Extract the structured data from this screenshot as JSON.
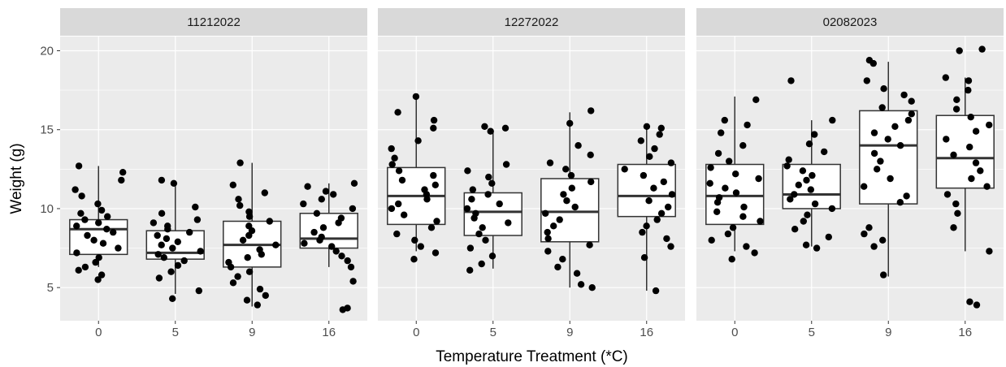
{
  "chart_data": {
    "type": "boxplot",
    "xlabel": "Temperature Treatment (*C)",
    "ylabel": "Weight (g)",
    "ylim": [
      2.9,
      20.9
    ],
    "yticks": [
      5,
      10,
      15,
      20
    ],
    "categories": [
      "0",
      "5",
      "9",
      "16"
    ],
    "panels": [
      {
        "label": "11212022",
        "boxes": [
          {
            "category": "0",
            "lower": 6.3,
            "q1": 7.1,
            "median": 8.7,
            "q3": 9.3,
            "upper": 12.7
          },
          {
            "category": "5",
            "lower": 4.6,
            "q1": 6.8,
            "median": 7.2,
            "q3": 8.6,
            "upper": 11.7
          },
          {
            "category": "9",
            "lower": 3.8,
            "q1": 6.3,
            "median": 7.7,
            "q3": 9.2,
            "upper": 12.9
          },
          {
            "category": "16",
            "lower": 6.3,
            "q1": 7.5,
            "median": 8.1,
            "q3": 9.7,
            "upper": 11.6
          }
        ],
        "points": [
          {
            "category": "0",
            "values": [
              5.5,
              5.8,
              6.1,
              6.3,
              6.6,
              6.9,
              7.2,
              7.5,
              7.8,
              8.0,
              8.3,
              8.5,
              8.7,
              8.9,
              9.1,
              9.3,
              9.5,
              9.7,
              9.9,
              10.3,
              10.8,
              11.2,
              11.8,
              12.3,
              12.7
            ]
          },
          {
            "category": "5",
            "values": [
              4.3,
              4.8,
              5.6,
              6.0,
              6.4,
              6.7,
              6.9,
              7.1,
              7.3,
              7.5,
              7.7,
              7.9,
              8.1,
              8.3,
              8.5,
              8.7,
              8.9,
              9.1,
              9.3,
              9.7,
              10.1,
              11.6,
              11.8
            ]
          },
          {
            "category": "9",
            "values": [
              3.9,
              4.2,
              4.5,
              4.9,
              5.3,
              5.7,
              6.0,
              6.3,
              6.6,
              6.9,
              7.1,
              7.4,
              7.7,
              8.0,
              8.3,
              8.6,
              8.9,
              9.2,
              9.5,
              9.8,
              10.2,
              10.6,
              11.0,
              11.5,
              12.9
            ]
          },
          {
            "category": "16",
            "values": [
              3.6,
              3.7,
              5.4,
              6.3,
              6.7,
              7.0,
              7.3,
              7.6,
              7.8,
              8.0,
              8.2,
              8.5,
              8.8,
              9.1,
              9.4,
              9.7,
              10.0,
              10.3,
              10.6,
              10.9,
              11.1,
              11.4,
              11.6
            ]
          }
        ]
      },
      {
        "label": "12272022",
        "boxes": [
          {
            "category": "0",
            "lower": 7.3,
            "q1": 9.0,
            "median": 10.8,
            "q3": 12.6,
            "upper": 17.0
          },
          {
            "category": "5",
            "lower": 6.2,
            "q1": 8.3,
            "median": 9.8,
            "q3": 11.0,
            "upper": 15.0
          },
          {
            "category": "9",
            "lower": 5.0,
            "q1": 7.9,
            "median": 9.8,
            "q3": 11.9,
            "upper": 16.1
          },
          {
            "category": "16",
            "lower": 4.8,
            "q1": 9.5,
            "median": 10.8,
            "q3": 12.8,
            "upper": 15.3
          }
        ],
        "points": [
          {
            "category": "0",
            "values": [
              6.8,
              7.2,
              7.6,
              8.0,
              8.4,
              8.8,
              9.2,
              9.6,
              10.0,
              10.3,
              10.6,
              10.9,
              11.2,
              11.5,
              11.8,
              12.1,
              12.4,
              12.8,
              13.2,
              13.8,
              14.3,
              15.1,
              15.6,
              16.1,
              17.1
            ]
          },
          {
            "category": "5",
            "values": [
              6.1,
              6.5,
              7.0,
              7.5,
              8.0,
              8.4,
              8.8,
              9.1,
              9.4,
              9.7,
              10.0,
              10.3,
              10.6,
              10.9,
              11.2,
              11.6,
              12.0,
              12.4,
              12.8,
              14.9,
              15.1,
              15.2
            ]
          },
          {
            "category": "9",
            "values": [
              5.0,
              5.2,
              5.9,
              6.3,
              6.8,
              7.3,
              7.7,
              8.1,
              8.5,
              8.9,
              9.3,
              9.7,
              10.1,
              10.5,
              10.9,
              11.3,
              11.7,
              12.1,
              12.5,
              12.9,
              13.4,
              14.0,
              15.4,
              16.2
            ]
          },
          {
            "category": "16",
            "values": [
              4.8,
              6.9,
              7.6,
              8.1,
              8.5,
              8.9,
              9.3,
              9.7,
              10.1,
              10.5,
              10.9,
              11.3,
              11.7,
              12.1,
              12.5,
              12.9,
              13.3,
              13.8,
              14.3,
              14.7,
              15.1,
              15.2
            ]
          }
        ]
      },
      {
        "label": "02082023",
        "boxes": [
          {
            "category": "0",
            "lower": 7.3,
            "q1": 9.0,
            "median": 10.8,
            "q3": 12.8,
            "upper": 17.1
          },
          {
            "category": "5",
            "lower": 7.6,
            "q1": 10.0,
            "median": 10.9,
            "q3": 12.8,
            "upper": 15.6
          },
          {
            "category": "9",
            "lower": 5.7,
            "q1": 10.3,
            "median": 14.0,
            "q3": 16.2,
            "upper": 19.3
          },
          {
            "category": "16",
            "lower": 7.3,
            "q1": 11.3,
            "median": 13.2,
            "q3": 15.9,
            "upper": 18.3
          }
        ],
        "points": [
          {
            "category": "0",
            "values": [
              6.8,
              7.2,
              7.6,
              8.0,
              8.4,
              8.8,
              9.2,
              9.5,
              9.8,
              10.1,
              10.4,
              10.7,
              11.0,
              11.3,
              11.6,
              11.9,
              12.2,
              12.6,
              13.0,
              13.5,
              14.0,
              14.8,
              15.3,
              15.6,
              16.9
            ]
          },
          {
            "category": "5",
            "values": [
              7.5,
              7.7,
              8.2,
              8.7,
              9.2,
              9.6,
              10.0,
              10.3,
              10.6,
              10.9,
              11.2,
              11.5,
              11.8,
              12.1,
              12.4,
              12.7,
              13.1,
              13.6,
              14.1,
              14.7,
              15.6,
              18.1
            ]
          },
          {
            "category": "9",
            "values": [
              5.8,
              7.6,
              8.0,
              8.4,
              8.8,
              10.4,
              10.8,
              11.4,
              11.9,
              12.5,
              13.0,
              13.5,
              14.0,
              14.4,
              14.8,
              15.2,
              15.6,
              16.0,
              16.4,
              16.8,
              17.2,
              17.6,
              18.1,
              19.2,
              19.4
            ]
          },
          {
            "category": "16",
            "values": [
              3.9,
              4.1,
              7.3,
              8.8,
              9.7,
              10.3,
              10.9,
              11.4,
              11.9,
              12.4,
              12.9,
              13.4,
              13.9,
              14.4,
              14.9,
              15.3,
              15.8,
              16.3,
              16.9,
              17.5,
              18.1,
              18.3,
              20.0,
              20.1
            ]
          }
        ]
      }
    ]
  }
}
